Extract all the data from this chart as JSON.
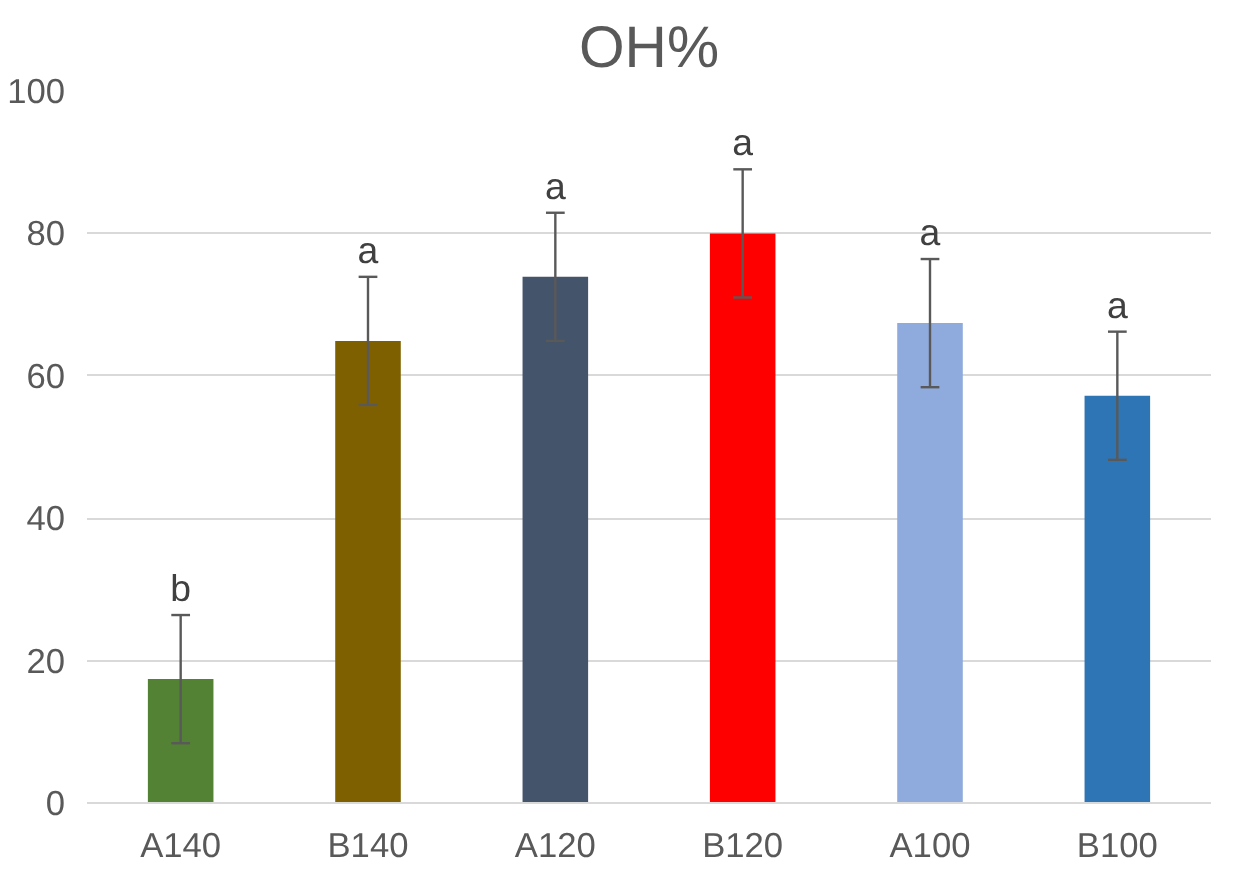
{
  "chart_data": {
    "type": "bar",
    "title": "OH%",
    "categories": [
      "A140",
      "B140",
      "A120",
      "B120",
      "A100",
      "B100"
    ],
    "values": [
      17.4,
      64.9,
      73.9,
      80,
      67.4,
      57.2
    ],
    "colors": [
      "#548235",
      "#7f6000",
      "#44546a",
      "#ff0000",
      "#8faadc",
      "#2e75b6"
    ],
    "errors": [
      9,
      9,
      9,
      9,
      9,
      9
    ],
    "ylim": [
      0,
      100
    ],
    "yticks": [
      0,
      20,
      40,
      60,
      80,
      100
    ],
    "grid": "y",
    "annotations": [
      "b",
      "a",
      "a",
      "a",
      "a",
      "a"
    ]
  }
}
